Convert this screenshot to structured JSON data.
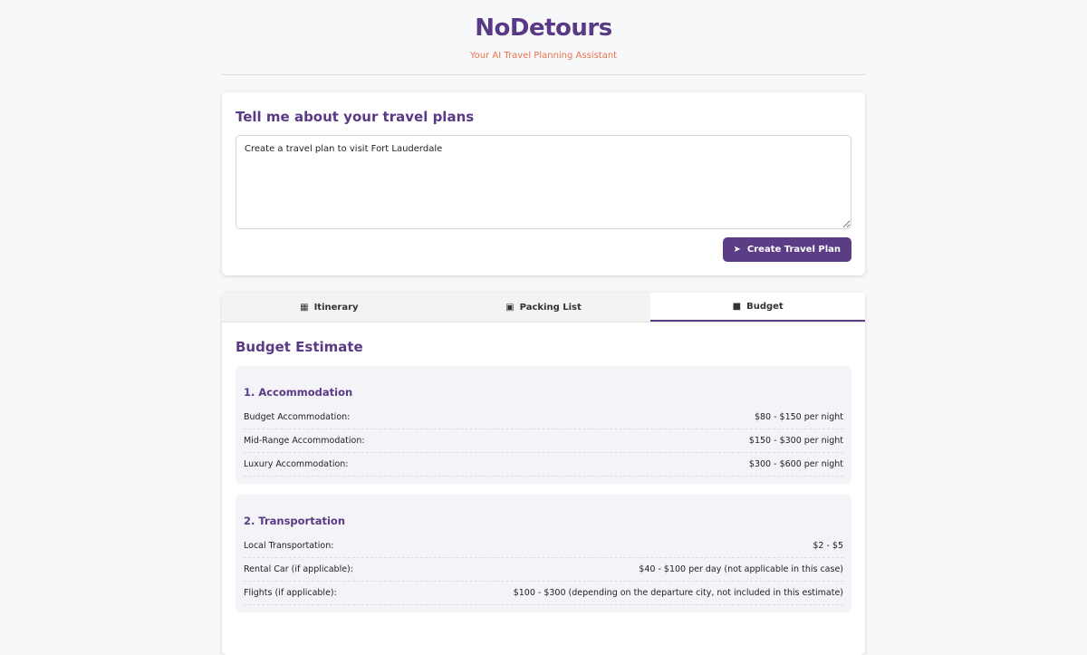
{
  "header": {
    "title": "NoDetours",
    "subtitle": "Your AI Travel Planning Assistant"
  },
  "input": {
    "heading": "Tell me about your travel plans",
    "value": "Create a travel plan to visit Fort Lauderdale",
    "button": "Create Travel Plan"
  },
  "tabs": [
    {
      "label": "Itinerary",
      "icon": "map-icon"
    },
    {
      "label": "Packing List",
      "icon": "suitcase-icon"
    },
    {
      "label": "Budget",
      "icon": "wallet-icon",
      "active": true
    }
  ],
  "budget": {
    "heading": "Budget Estimate",
    "sections": [
      {
        "title": "1. Accommodation",
        "rows": [
          [
            "Budget Accommodation:",
            "$80 - $150 per night"
          ],
          [
            "Mid-Range Accommodation:",
            "$150 - $300 per night"
          ],
          [
            "Luxury Accommodation:",
            "$300 - $600 per night"
          ]
        ]
      },
      {
        "title": "2. Transportation",
        "rows": [
          [
            "Local Transportation:",
            "$2 - $5"
          ],
          [
            "Rental Car (if applicable):",
            "$40 - $100 per day (not applicable in this case)"
          ],
          [
            "Flights (if applicable):",
            "$100 - $300 (depending on the departure city, not included in this estimate)"
          ]
        ]
      }
    ]
  },
  "colors": {
    "accent": "#5b3d86",
    "subtitle": "#e8734f"
  }
}
